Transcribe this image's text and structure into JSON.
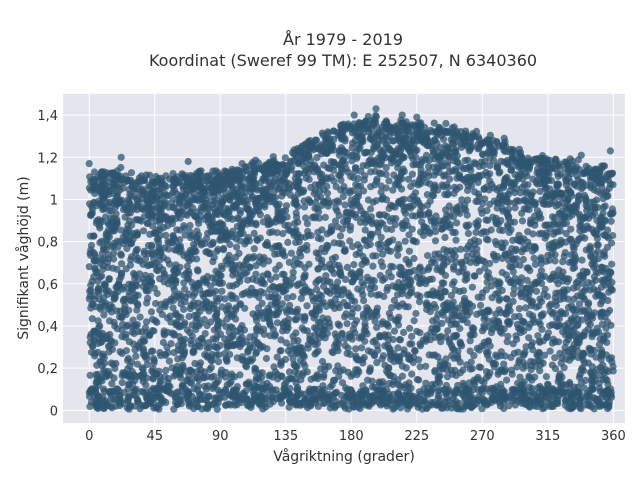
{
  "chart_data": {
    "type": "scatter",
    "title_line1": "År 1979 - 2019",
    "title_line2": "Koordinat (Sweref 99 TM): E 252507, N 6340360",
    "xlabel": "Vågriktning (grader)",
    "ylabel": "Signifikant våghöjd (m)",
    "xlim": [
      -18,
      368
    ],
    "ylim": [
      -0.06,
      1.5
    ],
    "x_ticks": [
      0,
      45,
      90,
      135,
      180,
      225,
      270,
      315,
      360
    ],
    "x_tick_labels": [
      "0",
      "45",
      "90",
      "135",
      "180",
      "225",
      "270",
      "315",
      "360"
    ],
    "y_ticks": [
      0,
      0.2,
      0.4,
      0.6,
      0.8,
      1,
      1.2,
      1.4
    ],
    "y_tick_labels": [
      "0",
      "0,2",
      "0,4",
      "0,6",
      "0,8",
      "1",
      "1,2",
      "1,4"
    ],
    "grid": true,
    "point_color": "#2f5570",
    "point_opacity": 0.75,
    "upper_envelope": [
      [
        0,
        1.12
      ],
      [
        20,
        1.13
      ],
      [
        45,
        1.1
      ],
      [
        70,
        1.12
      ],
      [
        90,
        1.12
      ],
      [
        110,
        1.16
      ],
      [
        125,
        1.18
      ],
      [
        135,
        1.2
      ],
      [
        150,
        1.28
      ],
      [
        165,
        1.32
      ],
      [
        180,
        1.36
      ],
      [
        195,
        1.38
      ],
      [
        210,
        1.37
      ],
      [
        225,
        1.36
      ],
      [
        240,
        1.34
      ],
      [
        255,
        1.33
      ],
      [
        270,
        1.3
      ],
      [
        285,
        1.26
      ],
      [
        300,
        1.2
      ],
      [
        315,
        1.2
      ],
      [
        330,
        1.18
      ],
      [
        345,
        1.16
      ],
      [
        360,
        1.14
      ]
    ],
    "outliers": [
      [
        0,
        1.17
      ],
      [
        22,
        1.2
      ],
      [
        68,
        1.18
      ],
      [
        105,
        1.17
      ],
      [
        182,
        1.4
      ],
      [
        197,
        1.43
      ],
      [
        215,
        1.4
      ],
      [
        225,
        1.39
      ],
      [
        245,
        1.36
      ],
      [
        285,
        1.29
      ],
      [
        338,
        1.21
      ],
      [
        358,
        1.23
      ]
    ]
  }
}
